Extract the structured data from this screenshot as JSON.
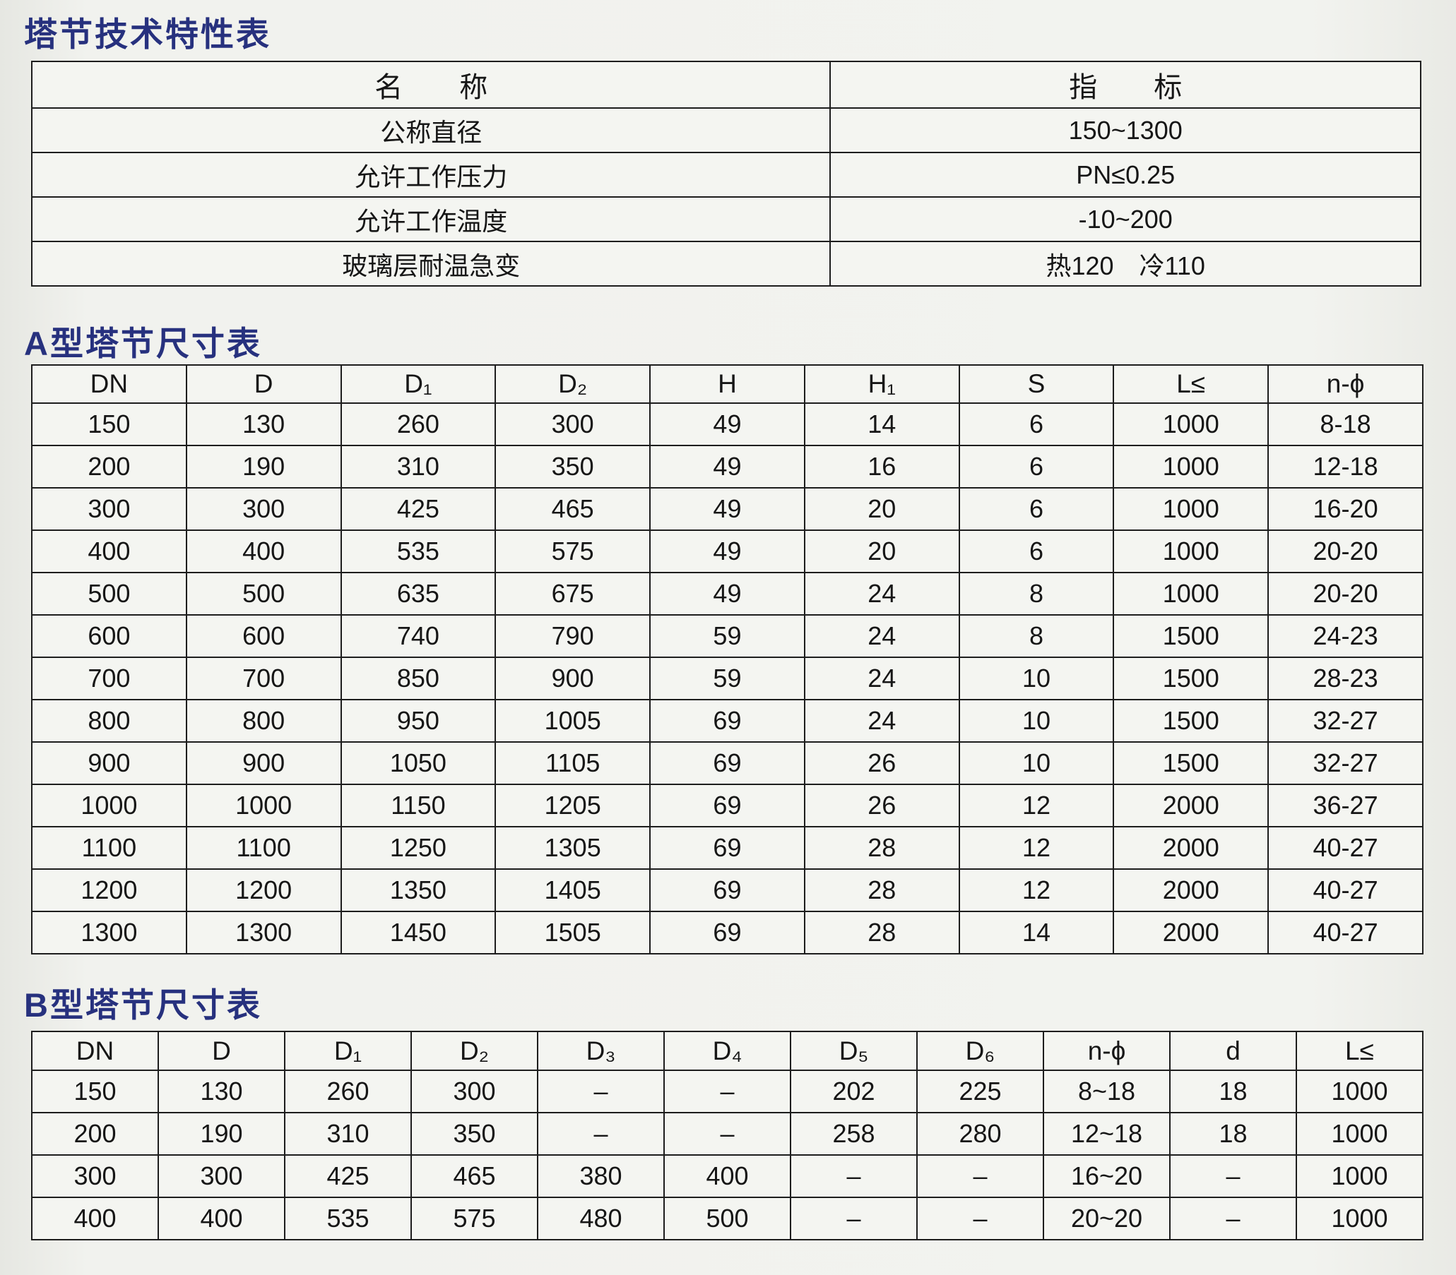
{
  "page": {
    "background_color": "#f1f2ee",
    "title_color": "#27317e",
    "border_color": "#1d1d1d"
  },
  "spec_table": {
    "title": "塔节技术特性表",
    "headers": [
      "名　　称",
      "指　　标"
    ],
    "rows": [
      [
        "公称直径",
        "150~1300"
      ],
      [
        "允许工作压力",
        "PN≤0.25"
      ],
      [
        "允许工作温度",
        "-10~200"
      ],
      [
        "玻璃层耐温急变",
        "热120　冷110"
      ]
    ]
  },
  "table_a": {
    "title": "A型塔节尺寸表",
    "headers": [
      "DN",
      "D",
      "D₁",
      "D₂",
      "H",
      "H₁",
      "S",
      "L≤",
      "n-ϕ"
    ],
    "rows": [
      [
        "150",
        "130",
        "260",
        "300",
        "49",
        "14",
        "6",
        "1000",
        "8-18"
      ],
      [
        "200",
        "190",
        "310",
        "350",
        "49",
        "16",
        "6",
        "1000",
        "12-18"
      ],
      [
        "300",
        "300",
        "425",
        "465",
        "49",
        "20",
        "6",
        "1000",
        "16-20"
      ],
      [
        "400",
        "400",
        "535",
        "575",
        "49",
        "20",
        "6",
        "1000",
        "20-20"
      ],
      [
        "500",
        "500",
        "635",
        "675",
        "49",
        "24",
        "8",
        "1000",
        "20-20"
      ],
      [
        "600",
        "600",
        "740",
        "790",
        "59",
        "24",
        "8",
        "1500",
        "24-23"
      ],
      [
        "700",
        "700",
        "850",
        "900",
        "59",
        "24",
        "10",
        "1500",
        "28-23"
      ],
      [
        "800",
        "800",
        "950",
        "1005",
        "69",
        "24",
        "10",
        "1500",
        "32-27"
      ],
      [
        "900",
        "900",
        "1050",
        "1105",
        "69",
        "26",
        "10",
        "1500",
        "32-27"
      ],
      [
        "1000",
        "1000",
        "1150",
        "1205",
        "69",
        "26",
        "12",
        "2000",
        "36-27"
      ],
      [
        "1100",
        "1100",
        "1250",
        "1305",
        "69",
        "28",
        "12",
        "2000",
        "40-27"
      ],
      [
        "1200",
        "1200",
        "1350",
        "1405",
        "69",
        "28",
        "12",
        "2000",
        "40-27"
      ],
      [
        "1300",
        "1300",
        "1450",
        "1505",
        "69",
        "28",
        "14",
        "2000",
        "40-27"
      ]
    ]
  },
  "table_b": {
    "title": "B型塔节尺寸表",
    "headers": [
      "DN",
      "D",
      "D₁",
      "D₂",
      "D₃",
      "D₄",
      "D₅",
      "D₆",
      "n-ϕ",
      "d",
      "L≤"
    ],
    "rows": [
      [
        "150",
        "130",
        "260",
        "300",
        "–",
        "–",
        "202",
        "225",
        "8~18",
        "18",
        "1000"
      ],
      [
        "200",
        "190",
        "310",
        "350",
        "–",
        "–",
        "258",
        "280",
        "12~18",
        "18",
        "1000"
      ],
      [
        "300",
        "300",
        "425",
        "465",
        "380",
        "400",
        "–",
        "–",
        "16~20",
        "–",
        "1000"
      ],
      [
        "400",
        "400",
        "535",
        "575",
        "480",
        "500",
        "–",
        "–",
        "20~20",
        "–",
        "1000"
      ]
    ]
  }
}
